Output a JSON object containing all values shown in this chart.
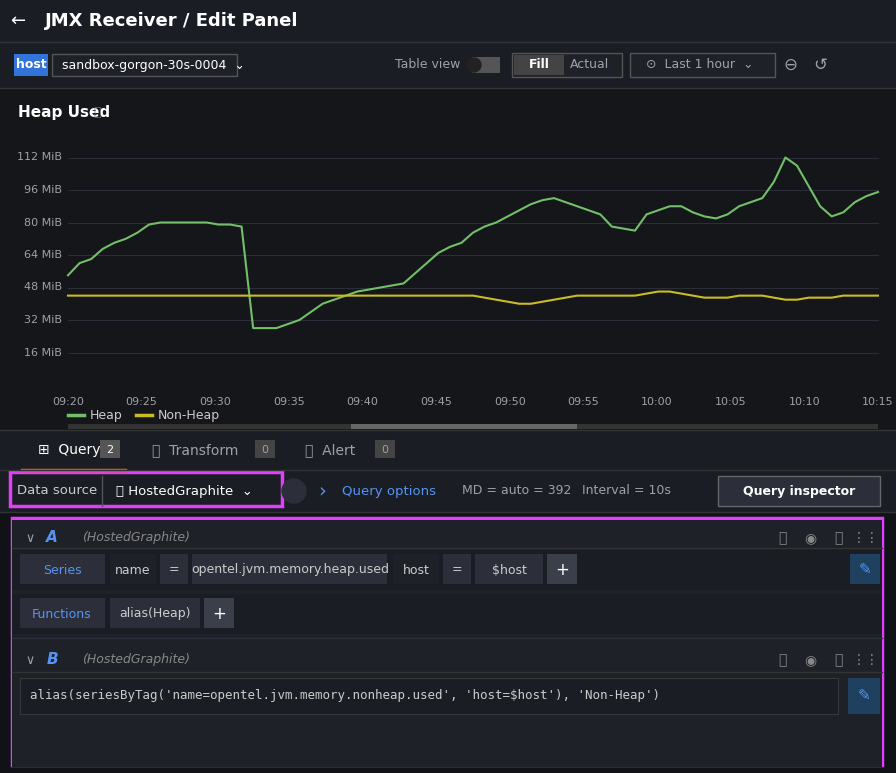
{
  "bg_color": "#111217",
  "chart_bg": "#141619",
  "row_bg": "#1a1d23",
  "item_bg": "#1f2128",
  "title": "JMX Receiver / Edit Panel",
  "chart_title": "Heap Used",
  "host_label": "host",
  "host_value": "sandbox-gorgon-30s-0004",
  "fill_btn": "Fill",
  "actual_btn": "Actual",
  "time_btn": "Last 1 hour",
  "table_view": "Table view",
  "query_tab": "Query",
  "query_count": "2",
  "transform_tab": "Transform",
  "transform_count": "0",
  "alert_tab": "Alert",
  "alert_count": "0",
  "datasource_label": "Data source",
  "datasource_value": "HostedGraphite",
  "query_options_label": "Query options",
  "query_options_md": "MD = auto = 392",
  "query_options_interval": "Interval = 10s",
  "query_inspector_btn": "Query inspector",
  "query_A_label": "A",
  "query_A_source": "(HostedGraphite)",
  "series_label": "Series",
  "series_name_label": "name",
  "series_metric": "opentel.jvm.memory.heap.used",
  "series_host_label": "host",
  "series_host_value": "$host",
  "functions_label": "Functions",
  "functions_value": "alias(Heap)",
  "query_B_label": "B",
  "query_B_source": "(HostedGraphite)",
  "query_B_text": "alias(seriesByTag('name=opentel.jvm.memory.nonheap.used', 'host=$host'), 'Non-Heap')",
  "heap_color": "#73bf69",
  "nonheap_color": "#cabc25",
  "magenta_border": "#e040fb",
  "orange_underline": "#f05a28",
  "blue_text": "#5794f2",
  "gray_text": "#9fa1a6",
  "light_text": "#cccccc",
  "ytick_vals": [
    16,
    32,
    48,
    64,
    80,
    96,
    112
  ],
  "ytick_labels": [
    "16 MiB",
    "32 MiB",
    "48 MiB",
    "64 MiB",
    "80 MiB",
    "96 MiB",
    "112 MiB"
  ],
  "xtick_labels": [
    "09:20",
    "09:25",
    "09:30",
    "09:35",
    "09:40",
    "09:45",
    "09:50",
    "09:55",
    "10:00",
    "10:05",
    "10:10",
    "10:15"
  ],
  "heap_x": [
    0,
    1,
    2,
    3,
    4,
    5,
    6,
    7,
    8,
    9,
    10,
    11,
    12,
    13,
    14,
    15,
    16,
    17,
    18,
    19,
    20,
    21,
    22,
    23,
    24,
    25,
    26,
    27,
    28,
    29,
    30,
    31,
    32,
    33,
    34,
    35,
    36,
    37,
    38,
    39,
    40,
    41,
    42,
    43,
    44,
    45,
    46,
    47,
    48,
    49,
    50,
    51,
    52,
    53,
    54,
    55,
    56,
    57,
    58,
    59,
    60,
    61,
    62,
    63,
    64,
    65,
    66,
    67,
    68,
    69,
    70
  ],
  "heap_y": [
    54,
    60,
    62,
    67,
    70,
    72,
    75,
    79,
    80,
    80,
    80,
    80,
    80,
    79,
    79,
    78,
    28,
    28,
    28,
    30,
    32,
    36,
    40,
    42,
    44,
    46,
    47,
    48,
    49,
    50,
    55,
    60,
    65,
    68,
    70,
    75,
    78,
    80,
    83,
    86,
    89,
    91,
    92,
    90,
    88,
    86,
    84,
    78,
    77,
    76,
    84,
    86,
    88,
    88,
    85,
    83,
    82,
    84,
    88,
    90,
    92,
    100,
    112,
    108,
    98,
    88,
    83,
    85,
    90,
    93,
    95
  ],
  "nonheap_x": [
    0,
    1,
    2,
    3,
    4,
    5,
    6,
    7,
    8,
    9,
    10,
    11,
    12,
    13,
    14,
    15,
    16,
    17,
    18,
    19,
    20,
    21,
    22,
    23,
    24,
    25,
    26,
    27,
    28,
    29,
    30,
    31,
    32,
    33,
    34,
    35,
    36,
    37,
    38,
    39,
    40,
    41,
    42,
    43,
    44,
    45,
    46,
    47,
    48,
    49,
    50,
    51,
    52,
    53,
    54,
    55,
    56,
    57,
    58,
    59,
    60,
    61,
    62,
    63,
    64,
    65,
    66,
    67,
    68,
    69,
    70
  ],
  "nonheap_y": [
    44,
    44,
    44,
    44,
    44,
    44,
    44,
    44,
    44,
    44,
    44,
    44,
    44,
    44,
    44,
    44,
    44,
    44,
    44,
    44,
    44,
    44,
    44,
    44,
    44,
    44,
    44,
    44,
    44,
    44,
    44,
    44,
    44,
    44,
    44,
    44,
    43,
    42,
    41,
    40,
    40,
    41,
    42,
    43,
    44,
    44,
    44,
    44,
    44,
    44,
    45,
    46,
    46,
    45,
    44,
    43,
    43,
    43,
    44,
    44,
    44,
    43,
    42,
    42,
    43,
    43,
    43,
    44,
    44,
    44,
    44
  ]
}
